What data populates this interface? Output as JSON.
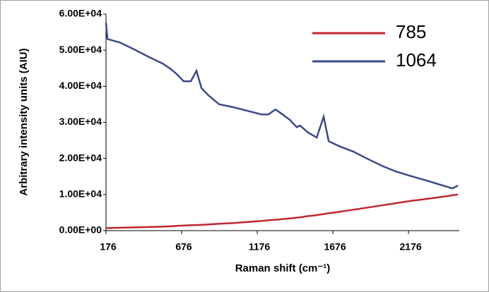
{
  "chart_data": {
    "type": "line",
    "x_label": "Raman shift (cm⁻¹)",
    "y_label": "Arbitrary intensity units (AIU)",
    "x": [
      176,
      186,
      270,
      363,
      456,
      550,
      597,
      643,
      690,
      737,
      774,
      807,
      853,
      924,
      1017,
      1110,
      1204,
      1250,
      1297,
      1343,
      1391,
      1437,
      1460,
      1508,
      1569,
      1615,
      1648,
      1718,
      1811,
      1905,
      1998,
      2092,
      2185,
      2279,
      2372,
      2466,
      2503
    ],
    "series": [
      {
        "name": "785",
        "color": "#c1272d",
        "values": [
          700,
          700,
          800,
          900,
          1000,
          1100,
          1200,
          1300,
          1400,
          1500,
          1550,
          1600,
          1700,
          1900,
          2100,
          2400,
          2700,
          2900,
          3000,
          3200,
          3400,
          3600,
          3700,
          4000,
          4300,
          4600,
          4800,
          5200,
          5800,
          6400,
          7000,
          7600,
          8200,
          8700,
          9200,
          9800,
          10000
        ]
      },
      {
        "name": "1064",
        "color": "#3a4a8c",
        "values": [
          57600,
          53100,
          52100,
          50200,
          48200,
          46300,
          45000,
          43400,
          41400,
          41400,
          44300,
          39500,
          37500,
          35000,
          34200,
          33200,
          32200,
          32200,
          33600,
          32200,
          30700,
          28700,
          29100,
          27300,
          25800,
          31600,
          24800,
          23400,
          21900,
          19900,
          18000,
          16400,
          15200,
          14100,
          12900,
          11700,
          12500
        ]
      }
    ],
    "xlim": [
      176,
      2512
    ],
    "xticks": [
      176,
      676,
      1176,
      1676,
      2176
    ],
    "ylim": [
      0,
      60000
    ],
    "yticks": [
      {
        "value": 0,
        "label": "0.00E+00"
      },
      {
        "value": 10000,
        "label": "1.00E+04"
      },
      {
        "value": 20000,
        "label": "2.00E+04"
      },
      {
        "value": 30000,
        "label": "3.00E+04"
      },
      {
        "value": 40000,
        "label": "4.00E+04"
      },
      {
        "value": 50000,
        "label": "5.00E+04"
      },
      {
        "value": 60000,
        "label": "6.00E+04"
      }
    ],
    "legend": "top-right"
  }
}
